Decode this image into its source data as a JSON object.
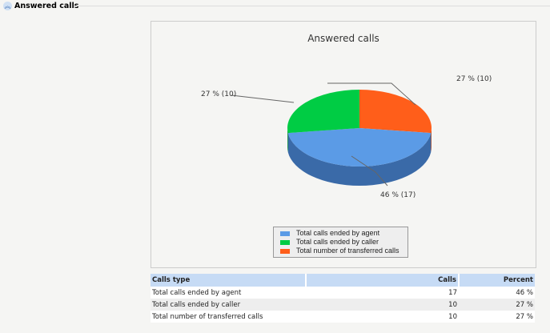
{
  "section": {
    "title": "Answered calls"
  },
  "chart_data": {
    "type": "pie",
    "title": "Answered calls",
    "slices": [
      {
        "name": "Total calls ended by agent",
        "value": 17,
        "percent": 46,
        "label": "46 % (17)",
        "color": "#5b9be6",
        "side": "#3a6aa8"
      },
      {
        "name": "Total calls ended by caller",
        "value": 10,
        "percent": 27,
        "label": "27 % (10)",
        "color": "#00cc44",
        "side": "#008a2c"
      },
      {
        "name": "Total number of transferred calls",
        "value": 10,
        "percent": 27,
        "label": "27 % (10)",
        "color": "#ff5e1a",
        "side": "#b83a0a"
      }
    ]
  },
  "table": {
    "headers": [
      "Calls type",
      "Calls",
      "Percent"
    ],
    "rows": [
      [
        "Total calls ended by agent",
        "17",
        "46 %"
      ],
      [
        "Total calls ended by caller",
        "10",
        "27 %"
      ],
      [
        "Total number of transferred calls",
        "10",
        "27 %"
      ]
    ]
  }
}
